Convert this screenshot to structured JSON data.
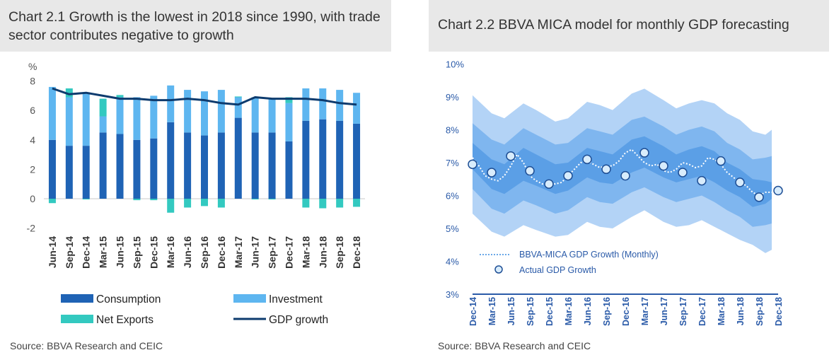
{
  "colors": {
    "consumption": "#1f63b5",
    "investment": "#5eb6f0",
    "net_exports": "#33c9c0",
    "gdp_line": "#0d3b6e",
    "band_outer": "#b3d3f6",
    "band_mid": "#7fb6ef",
    "band_inner": "#5b9fe6",
    "axis_blue": "#2a5aa8"
  },
  "chart_data": [
    {
      "id": "chart-2-1",
      "type": "bar",
      "stacked": true,
      "title": "Chart 2.1 Growth is the lowest in 2018 since 1990, with trade sector contributes negative to growth",
      "ylabel": "%",
      "ylim": [
        -2,
        8
      ],
      "yticks": [
        -2,
        0,
        2,
        4,
        6,
        8
      ],
      "categories": [
        "Jun-14",
        "Sep-14",
        "Dec-14",
        "Mar-15",
        "Jun-15",
        "Sep-15",
        "Dec-15",
        "Mar-16",
        "Jun-16",
        "Sep-16",
        "Dec-16",
        "Mar-17",
        "Jun-17",
        "Sep-17",
        "Dec-17",
        "Mar-18",
        "Jun-18",
        "Sep-18",
        "Dec-18"
      ],
      "series": [
        {
          "name": "Consumption",
          "kind": "bar",
          "values": [
            4.0,
            3.6,
            3.6,
            4.5,
            4.4,
            4.0,
            4.1,
            5.2,
            4.5,
            4.3,
            4.5,
            5.5,
            4.5,
            4.5,
            3.9,
            5.3,
            5.4,
            5.3,
            5.1
          ]
        },
        {
          "name": "Investment",
          "kind": "bar",
          "values": [
            3.6,
            3.3,
            3.6,
            1.1,
            2.5,
            2.9,
            2.9,
            2.5,
            2.9,
            3.0,
            2.9,
            1.4,
            2.4,
            2.3,
            2.6,
            2.2,
            2.1,
            2.1,
            2.1
          ]
        },
        {
          "name": "Net Exports",
          "kind": "bar",
          "values": [
            -0.3,
            0.6,
            -0.05,
            1.2,
            0.15,
            -0.1,
            -0.1,
            -0.95,
            -0.6,
            -0.5,
            -0.6,
            0.05,
            -0.05,
            -0.05,
            0.4,
            -0.6,
            -0.65,
            -0.6,
            -0.55
          ]
        },
        {
          "name": "GDP growth",
          "kind": "line",
          "values": [
            7.5,
            7.1,
            7.2,
            7.0,
            6.8,
            6.8,
            6.7,
            6.7,
            6.8,
            6.7,
            6.5,
            6.4,
            6.9,
            6.8,
            6.8,
            6.8,
            6.7,
            6.5,
            6.4
          ]
        }
      ],
      "legend": [
        "Consumption",
        "Investment",
        "Net Exports",
        "GDP growth"
      ],
      "legend_position": "bottom",
      "source": "Source: BBVA Research and CEIC"
    },
    {
      "id": "chart-2-2",
      "type": "area",
      "title": "Chart 2.2 BBVA MICA model for monthly GDP forecasting",
      "ylim": [
        3,
        10
      ],
      "yticks": [
        "3%",
        "4%",
        "5%",
        "6%",
        "7%",
        "8%",
        "9%",
        "10%"
      ],
      "x_labels": [
        "Dec-14",
        "Mar-15",
        "Jun-15",
        "Sep-15",
        "Dec-15",
        "Mar-16",
        "Jun-16",
        "Sep-16",
        "Dec-16",
        "Mar-17",
        "Jun-17",
        "Sep-17",
        "Dec-17",
        "Mar-18",
        "Jun-18",
        "Sep-18",
        "Dec-18"
      ],
      "monthly_index_range": [
        0,
        48
      ],
      "band_outer_upper": [
        [
          0,
          9.05
        ],
        [
          3,
          8.5
        ],
        [
          5,
          8.35
        ],
        [
          8,
          8.8
        ],
        [
          10,
          8.6
        ],
        [
          13,
          8.25
        ],
        [
          15,
          8.35
        ],
        [
          18,
          8.85
        ],
        [
          20,
          8.75
        ],
        [
          22,
          8.6
        ],
        [
          25,
          9.1
        ],
        [
          27,
          9.25
        ],
        [
          30,
          8.9
        ],
        [
          32,
          8.65
        ],
        [
          34,
          8.8
        ],
        [
          36,
          8.9
        ],
        [
          38,
          8.8
        ],
        [
          40,
          8.5
        ],
        [
          42,
          8.3
        ],
        [
          44,
          7.95
        ],
        [
          46,
          7.85
        ],
        [
          47,
          8.0
        ]
      ],
      "band_outer_lower": [
        [
          0,
          5.45
        ],
        [
          3,
          4.9
        ],
        [
          5,
          4.75
        ],
        [
          8,
          5.1
        ],
        [
          10,
          4.95
        ],
        [
          13,
          4.75
        ],
        [
          15,
          4.8
        ],
        [
          18,
          5.2
        ],
        [
          20,
          5.05
        ],
        [
          22,
          5.0
        ],
        [
          25,
          5.35
        ],
        [
          27,
          5.55
        ],
        [
          30,
          5.2
        ],
        [
          32,
          5.05
        ],
        [
          34,
          5.1
        ],
        [
          36,
          5.25
        ],
        [
          38,
          5.05
        ],
        [
          40,
          4.85
        ],
        [
          42,
          4.65
        ],
        [
          44,
          4.5
        ],
        [
          46,
          4.25
        ],
        [
          47,
          4.35
        ]
      ],
      "band_mid_upper": [
        [
          0,
          8.2
        ],
        [
          3,
          7.7
        ],
        [
          5,
          7.55
        ],
        [
          8,
          8.05
        ],
        [
          10,
          7.85
        ],
        [
          13,
          7.55
        ],
        [
          15,
          7.6
        ],
        [
          18,
          8.05
        ],
        [
          20,
          7.95
        ],
        [
          22,
          7.85
        ],
        [
          25,
          8.3
        ],
        [
          27,
          8.4
        ],
        [
          30,
          8.1
        ],
        [
          32,
          7.85
        ],
        [
          34,
          8.0
        ],
        [
          36,
          8.1
        ],
        [
          38,
          7.95
        ],
        [
          40,
          7.6
        ],
        [
          42,
          7.4
        ],
        [
          44,
          7.1
        ],
        [
          46,
          7.15
        ],
        [
          47,
          7.2
        ]
      ],
      "band_mid_lower": [
        [
          0,
          6.2
        ],
        [
          3,
          5.6
        ],
        [
          5,
          5.45
        ],
        [
          8,
          5.85
        ],
        [
          10,
          5.7
        ],
        [
          13,
          5.45
        ],
        [
          15,
          5.55
        ],
        [
          18,
          5.95
        ],
        [
          20,
          5.8
        ],
        [
          22,
          5.75
        ],
        [
          25,
          6.1
        ],
        [
          27,
          6.25
        ],
        [
          30,
          5.95
        ],
        [
          32,
          5.8
        ],
        [
          34,
          5.9
        ],
        [
          36,
          6.0
        ],
        [
          38,
          5.8
        ],
        [
          40,
          5.55
        ],
        [
          42,
          5.35
        ],
        [
          44,
          5.05
        ],
        [
          46,
          5.1
        ],
        [
          47,
          5.15
        ]
      ],
      "band_inner_upper": [
        [
          0,
          7.6
        ],
        [
          3,
          7.1
        ],
        [
          5,
          6.95
        ],
        [
          8,
          7.45
        ],
        [
          10,
          7.25
        ],
        [
          13,
          6.95
        ],
        [
          15,
          7.0
        ],
        [
          18,
          7.45
        ],
        [
          20,
          7.35
        ],
        [
          22,
          7.25
        ],
        [
          25,
          7.7
        ],
        [
          27,
          7.8
        ],
        [
          30,
          7.5
        ],
        [
          32,
          7.25
        ],
        [
          34,
          7.4
        ],
        [
          36,
          7.5
        ],
        [
          38,
          7.35
        ],
        [
          40,
          7.0
        ],
        [
          42,
          6.8
        ],
        [
          44,
          6.5
        ],
        [
          46,
          6.45
        ],
        [
          47,
          6.4
        ]
      ],
      "band_inner_lower": [
        [
          0,
          6.8
        ],
        [
          3,
          6.2
        ],
        [
          5,
          6.05
        ],
        [
          8,
          6.45
        ],
        [
          10,
          6.3
        ],
        [
          13,
          6.05
        ],
        [
          15,
          6.15
        ],
        [
          18,
          6.55
        ],
        [
          20,
          6.4
        ],
        [
          22,
          6.35
        ],
        [
          25,
          6.7
        ],
        [
          27,
          6.85
        ],
        [
          30,
          6.55
        ],
        [
          32,
          6.4
        ],
        [
          34,
          6.5
        ],
        [
          36,
          6.6
        ],
        [
          38,
          6.4
        ],
        [
          40,
          6.15
        ],
        [
          42,
          5.95
        ],
        [
          44,
          5.65
        ],
        [
          46,
          5.75
        ],
        [
          47,
          5.9
        ]
      ],
      "series": [
        {
          "name": "BBVA-MICA GDP Growth (Monthly)",
          "kind": "dotted-line",
          "points": [
            [
              0,
              7.15
            ],
            [
              1,
              6.9
            ],
            [
              2,
              6.6
            ],
            [
              3,
              6.5
            ],
            [
              4,
              6.45
            ],
            [
              5,
              6.6
            ],
            [
              6,
              6.9
            ],
            [
              7,
              7.25
            ],
            [
              8,
              7.0
            ],
            [
              9,
              6.6
            ],
            [
              10,
              6.45
            ],
            [
              11,
              6.35
            ],
            [
              12,
              6.4
            ],
            [
              13,
              6.35
            ],
            [
              14,
              6.4
            ],
            [
              15,
              6.6
            ],
            [
              16,
              6.8
            ],
            [
              17,
              7.0
            ],
            [
              18,
              7.05
            ],
            [
              19,
              6.95
            ],
            [
              20,
              6.85
            ],
            [
              21,
              6.9
            ],
            [
              22,
              6.9
            ],
            [
              23,
              7.05
            ],
            [
              24,
              7.3
            ],
            [
              25,
              7.4
            ],
            [
              26,
              7.2
            ],
            [
              27,
              7.0
            ],
            [
              28,
              6.9
            ],
            [
              29,
              6.95
            ],
            [
              30,
              6.75
            ],
            [
              31,
              6.7
            ],
            [
              32,
              6.8
            ],
            [
              33,
              7.0
            ],
            [
              34,
              6.95
            ],
            [
              35,
              6.85
            ],
            [
              36,
              6.9
            ],
            [
              37,
              7.15
            ],
            [
              38,
              7.1
            ],
            [
              39,
              6.95
            ],
            [
              40,
              6.7
            ],
            [
              41,
              6.55
            ],
            [
              42,
              6.4
            ],
            [
              43,
              6.3
            ],
            [
              44,
              6.1
            ],
            [
              45,
              6.0
            ],
            [
              46,
              6.1
            ],
            [
              47,
              6.1
            ]
          ]
        },
        {
          "name": "Actual GDP Growth",
          "kind": "marker",
          "points": [
            [
              0,
              6.95
            ],
            [
              3,
              6.7
            ],
            [
              6,
              7.2
            ],
            [
              9,
              6.75
            ],
            [
              12,
              6.35
            ],
            [
              15,
              6.6
            ],
            [
              18,
              7.1
            ],
            [
              21,
              6.8
            ],
            [
              24,
              6.6
            ],
            [
              27,
              7.3
            ],
            [
              30,
              6.9
            ],
            [
              33,
              6.7
            ],
            [
              36,
              6.45
            ],
            [
              39,
              7.05
            ],
            [
              42,
              6.4
            ],
            [
              45,
              5.95
            ],
            [
              48,
              6.15
            ]
          ]
        }
      ],
      "legend": [
        "BBVA-MICA GDP Growth (Monthly)",
        "Actual GDP Growth"
      ],
      "legend_position": "bottom-left",
      "source": "Source: BBVA Research and CEIC"
    }
  ]
}
